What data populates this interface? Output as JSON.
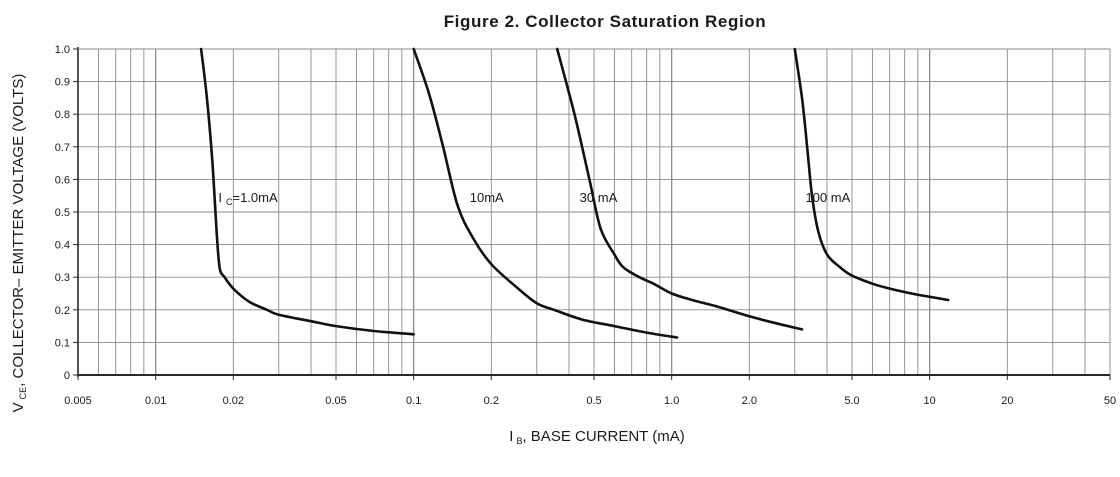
{
  "chart_data": {
    "type": "line",
    "title": "Figure 2. Collector Saturation Region",
    "xlabel": {
      "main": "I",
      "sub": "B",
      "rest": ", BASE CURRENT (mA)"
    },
    "ylabel": {
      "main": "V",
      "sub": "CE",
      "rest": ", COLLECTOR– EMITTER VOLTAGE (VOLTS)"
    },
    "xscale": "log",
    "xlim": [
      0.005,
      50
    ],
    "ylim": [
      0,
      1.0
    ],
    "grid": true,
    "x_ticks": [
      {
        "value": 0.005,
        "label": "0.005"
      },
      {
        "value": 0.01,
        "label": "0.01"
      },
      {
        "value": 0.02,
        "label": "0.02"
      },
      {
        "value": 0.05,
        "label": "0.05"
      },
      {
        "value": 0.1,
        "label": "0.1"
      },
      {
        "value": 0.2,
        "label": "0.2"
      },
      {
        "value": 0.5,
        "label": "0.5"
      },
      {
        "value": 1.0,
        "label": "1.0"
      },
      {
        "value": 2.0,
        "label": "2.0"
      },
      {
        "value": 5.0,
        "label": "5.0"
      },
      {
        "value": 10,
        "label": "10"
      },
      {
        "value": 20,
        "label": "20"
      },
      {
        "value": 50,
        "label": "50"
      }
    ],
    "y_ticks": [
      {
        "value": 0,
        "label": "0"
      },
      {
        "value": 0.1,
        "label": "0.1"
      },
      {
        "value": 0.2,
        "label": "0.2"
      },
      {
        "value": 0.3,
        "label": "0.3"
      },
      {
        "value": 0.4,
        "label": "0.4"
      },
      {
        "value": 0.5,
        "label": "0.5"
      },
      {
        "value": 0.6,
        "label": "0.6"
      },
      {
        "value": 0.7,
        "label": "0.7"
      },
      {
        "value": 0.8,
        "label": "0.8"
      },
      {
        "value": 0.9,
        "label": "0.9"
      },
      {
        "value": 1.0,
        "label": "1.0"
      }
    ],
    "series": [
      {
        "label": {
          "main": "I",
          "sub": "C",
          "rest": "=1.0mA",
          "at": [
            0.0175,
            0.53
          ]
        },
        "points": [
          [
            0.015,
            1.0
          ],
          [
            0.0158,
            0.85
          ],
          [
            0.0166,
            0.65
          ],
          [
            0.0172,
            0.45
          ],
          [
            0.0177,
            0.33
          ],
          [
            0.0185,
            0.3
          ],
          [
            0.02,
            0.265
          ],
          [
            0.023,
            0.225
          ],
          [
            0.027,
            0.2
          ],
          [
            0.03,
            0.185
          ],
          [
            0.04,
            0.165
          ],
          [
            0.05,
            0.15
          ],
          [
            0.07,
            0.135
          ],
          [
            0.1,
            0.125
          ]
        ]
      },
      {
        "label": {
          "main": "10mA",
          "sub": "",
          "rest": "",
          "at": [
            0.165,
            0.53
          ]
        },
        "points": [
          [
            0.1,
            1.0
          ],
          [
            0.115,
            0.86
          ],
          [
            0.13,
            0.7
          ],
          [
            0.148,
            0.52
          ],
          [
            0.17,
            0.42
          ],
          [
            0.2,
            0.34
          ],
          [
            0.25,
            0.27
          ],
          [
            0.3,
            0.22
          ],
          [
            0.35,
            0.2
          ],
          [
            0.45,
            0.17
          ],
          [
            0.6,
            0.15
          ],
          [
            0.8,
            0.13
          ],
          [
            1.05,
            0.115
          ]
        ]
      },
      {
        "label": {
          "main": "30 mA",
          "sub": "",
          "rest": "",
          "at": [
            0.44,
            0.53
          ]
        },
        "points": [
          [
            0.36,
            1.0
          ],
          [
            0.42,
            0.8
          ],
          [
            0.48,
            0.6
          ],
          [
            0.53,
            0.45
          ],
          [
            0.6,
            0.37
          ],
          [
            0.65,
            0.33
          ],
          [
            0.75,
            0.3
          ],
          [
            0.85,
            0.28
          ],
          [
            1.0,
            0.25
          ],
          [
            1.2,
            0.23
          ],
          [
            1.5,
            0.21
          ],
          [
            2.0,
            0.18
          ],
          [
            2.5,
            0.16
          ],
          [
            3.2,
            0.14
          ]
        ]
      },
      {
        "label": {
          "main": "100 mA",
          "sub": "",
          "rest": "",
          "at": [
            3.3,
            0.53
          ]
        },
        "points": [
          [
            3.0,
            1.0
          ],
          [
            3.2,
            0.85
          ],
          [
            3.35,
            0.7
          ],
          [
            3.5,
            0.55
          ],
          [
            3.7,
            0.44
          ],
          [
            4.0,
            0.37
          ],
          [
            4.5,
            0.33
          ],
          [
            5.0,
            0.305
          ],
          [
            6.0,
            0.28
          ],
          [
            7.0,
            0.265
          ],
          [
            8.5,
            0.25
          ],
          [
            10,
            0.24
          ],
          [
            11.8,
            0.23
          ]
        ]
      }
    ]
  }
}
